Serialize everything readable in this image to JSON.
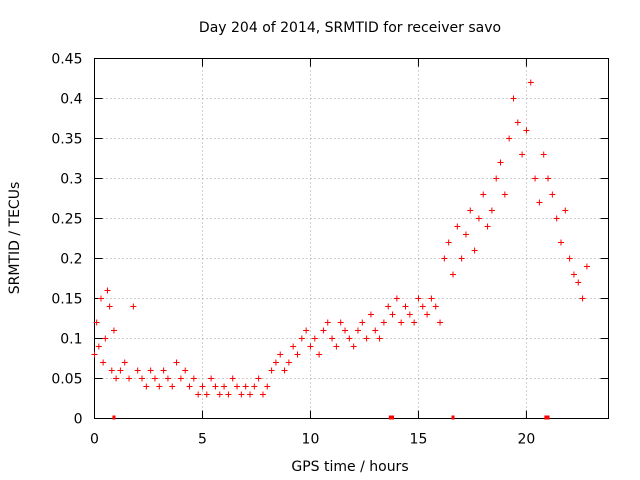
{
  "chart_data": {
    "type": "scatter",
    "title": "Day 204 of 2014, SRMTID for receiver savo",
    "xlabel": "GPS time / hours",
    "ylabel": "SRMTID / TECUs",
    "xlim": [
      0,
      23.8
    ],
    "ylim": [
      0,
      0.45
    ],
    "grid": true,
    "marker": "plus",
    "x_ticks": [
      0,
      5,
      10,
      15,
      20
    ],
    "x_tick_labels": [
      "0",
      "5",
      "10",
      "15",
      "20"
    ],
    "y_ticks": [
      0,
      0.05,
      0.1,
      0.15,
      0.2,
      0.25,
      0.3,
      0.35,
      0.4,
      0.45
    ],
    "y_tick_labels": [
      "0",
      "0.05",
      "0.1",
      "0.15",
      "0.2",
      "0.25",
      "0.3",
      "0.35",
      "0.4",
      "0.45"
    ],
    "series": [
      {
        "name": "SRMTID",
        "color": "#ff0000",
        "x": [
          0.0,
          0.1,
          0.2,
          0.3,
          0.4,
          0.5,
          0.6,
          0.7,
          0.8,
          0.9,
          1.0,
          1.2,
          1.4,
          1.6,
          1.8,
          2.0,
          2.2,
          2.4,
          2.6,
          2.8,
          3.0,
          3.2,
          3.4,
          3.6,
          3.8,
          4.0,
          4.2,
          4.4,
          4.6,
          4.8,
          5.0,
          5.2,
          5.4,
          5.6,
          5.8,
          6.0,
          6.2,
          6.4,
          6.6,
          6.8,
          7.0,
          7.2,
          7.4,
          7.6,
          7.8,
          8.0,
          8.2,
          8.4,
          8.6,
          8.8,
          9.0,
          9.2,
          9.4,
          9.6,
          9.8,
          10.0,
          10.2,
          10.4,
          10.6,
          10.8,
          11.0,
          11.2,
          11.4,
          11.6,
          11.8,
          12.0,
          12.2,
          12.4,
          12.6,
          12.8,
          13.0,
          13.2,
          13.4,
          13.6,
          13.8,
          14.0,
          14.2,
          14.4,
          14.6,
          14.8,
          15.0,
          15.2,
          15.4,
          15.6,
          15.8,
          16.0,
          16.2,
          16.4,
          16.6,
          16.8,
          17.0,
          17.2,
          17.4,
          17.6,
          17.8,
          18.0,
          18.2,
          18.4,
          18.6,
          18.8,
          19.0,
          19.2,
          19.4,
          19.6,
          19.8,
          20.0,
          20.2,
          20.4,
          20.6,
          20.8,
          21.0,
          21.2,
          21.4,
          21.6,
          21.8,
          22.0,
          22.2,
          22.4,
          22.6,
          22.8
        ],
        "values": [
          0.08,
          0.12,
          0.09,
          0.15,
          0.07,
          0.1,
          0.16,
          0.14,
          0.06,
          0.11,
          0.05,
          0.06,
          0.07,
          0.05,
          0.14,
          0.06,
          0.05,
          0.04,
          0.06,
          0.05,
          0.04,
          0.06,
          0.05,
          0.04,
          0.07,
          0.05,
          0.06,
          0.04,
          0.05,
          0.03,
          0.04,
          0.03,
          0.05,
          0.04,
          0.03,
          0.04,
          0.03,
          0.05,
          0.04,
          0.03,
          0.04,
          0.03,
          0.04,
          0.05,
          0.03,
          0.04,
          0.06,
          0.07,
          0.08,
          0.06,
          0.07,
          0.09,
          0.08,
          0.1,
          0.11,
          0.09,
          0.1,
          0.08,
          0.11,
          0.12,
          0.1,
          0.09,
          0.12,
          0.11,
          0.1,
          0.09,
          0.11,
          0.12,
          0.1,
          0.13,
          0.11,
          0.1,
          0.12,
          0.14,
          0.13,
          0.15,
          0.12,
          0.14,
          0.13,
          0.12,
          0.15,
          0.14,
          0.13,
          0.15,
          0.14,
          0.12,
          0.2,
          0.22,
          0.18,
          0.24,
          0.2,
          0.23,
          0.26,
          0.21,
          0.25,
          0.28,
          0.24,
          0.26,
          0.3,
          0.32,
          0.28,
          0.35,
          0.4,
          0.37,
          0.33,
          0.36,
          0.42,
          0.3,
          0.27,
          0.33,
          0.3,
          0.28,
          0.25,
          0.22,
          0.26,
          0.2,
          0.18,
          0.17,
          0.15,
          0.19
        ]
      }
    ],
    "bottom_markers_x": [
      0.9,
      13.7,
      13.8,
      16.6,
      20.9,
      21.0
    ]
  }
}
